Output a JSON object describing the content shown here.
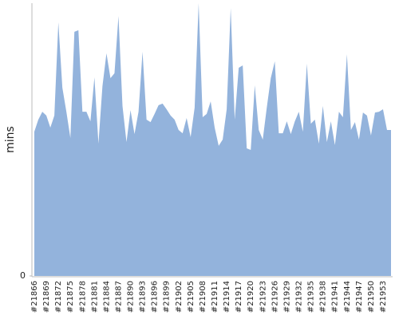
{
  "chart_data": {
    "type": "area",
    "y_label": "mins",
    "categories": [
      "#21866",
      null,
      null,
      "#21869",
      null,
      null,
      "#21872",
      null,
      null,
      "#21875",
      null,
      null,
      "#21878",
      null,
      null,
      "#21881",
      null,
      null,
      "#21884",
      null,
      null,
      "#21887",
      null,
      null,
      "#21890",
      null,
      null,
      "#21893",
      null,
      null,
      "#21896",
      null,
      null,
      "#21899",
      null,
      null,
      "#21902",
      null,
      null,
      "#21905",
      null,
      null,
      "#21908",
      null,
      null,
      "#21911",
      null,
      null,
      "#21914",
      null,
      null,
      "#21917",
      null,
      null,
      "#21920",
      null,
      null,
      "#21923",
      null,
      null,
      "#21926",
      null,
      null,
      "#21929",
      null,
      null,
      "#21932",
      null,
      null,
      "#21935",
      null,
      null,
      "#21938",
      null,
      null,
      "#21941",
      null,
      null,
      "#21944",
      null,
      null,
      "#21947",
      null,
      null,
      "#21950",
      null,
      null,
      "#21953",
      null,
      null
    ],
    "values": [
      52.9,
      57.3,
      60.2,
      58.8,
      54.4,
      58.8,
      93.0,
      69.0,
      60.2,
      50.6,
      89.5,
      90.1,
      60.2,
      60.2,
      56.7,
      72.8,
      48.5,
      69.6,
      81.6,
      72.5,
      74.3,
      95.3,
      62.3,
      49.1,
      60.8,
      52.0,
      60.2,
      82.2,
      57.3,
      56.4,
      59.4,
      62.6,
      63.2,
      61.1,
      58.8,
      57.3,
      53.5,
      52.3,
      57.9,
      50.9,
      61.7,
      100,
      58.2,
      59.4,
      64.0,
      54.4,
      47.7,
      50.0,
      61.1,
      98.2,
      57.3,
      76.3,
      77.2,
      46.8,
      46.2,
      69.9,
      53.5,
      50.0,
      61.7,
      72.5,
      78.7,
      52.3,
      52.3,
      56.7,
      52.0,
      56.7,
      60.2,
      52.9,
      77.8,
      55.8,
      57.3,
      48.5,
      62.3,
      49.1,
      56.7,
      48.0,
      60.2,
      58.2,
      81.3,
      53.5,
      56.4,
      50.0,
      59.9,
      58.8,
      51.5,
      59.9,
      60.2,
      61.1,
      53.5,
      53.5
    ],
    "color": "#93b3dc",
    "ylim": [
      0,
      100
    ],
    "yticks": [
      0
    ]
  }
}
